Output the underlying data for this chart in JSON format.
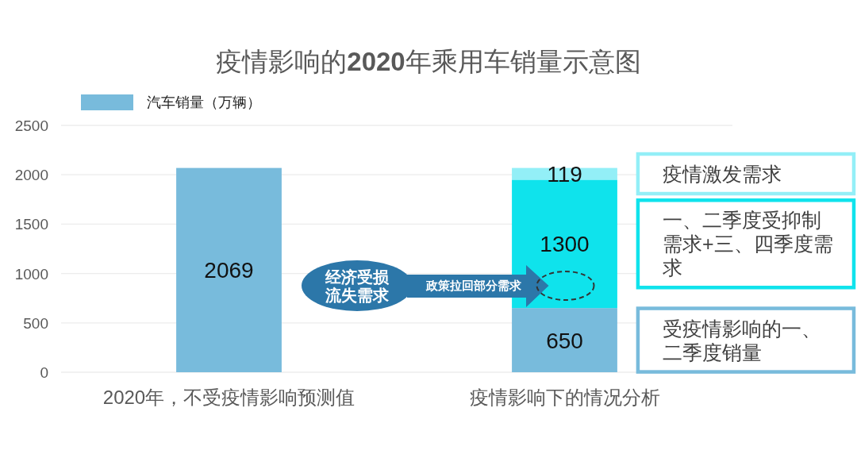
{
  "chart_data": {
    "type": "bar",
    "title": "疫情影响的**2020**年乘用车销量示意图",
    "categories": [
      "2020年，不受疫情影响预测值",
      "疫情影响下的情况分析"
    ],
    "stacked": true,
    "series": [
      {
        "name": "汽车销量（万辆）",
        "color": "#78bbdc",
        "values": [
          2069,
          650
        ]
      },
      {
        "color": "#0fe3ec",
        "values": [
          null,
          1300
        ]
      },
      {
        "color": "#93eff7",
        "values": [
          null,
          119
        ]
      }
    ],
    "ylim": [
      0,
      2500
    ],
    "yticks": [
      0,
      500,
      1000,
      1500,
      2000,
      2500
    ],
    "grid": "y",
    "legend": "top left",
    "data_labels": true,
    "annotations": [
      "疫情激发需求",
      "一、二季度受抑制需求+三、四季度需求",
      "受疫情影响的一、二季度销量",
      "经济受损流失需求",
      "政策拉回部分需求"
    ]
  }
}
